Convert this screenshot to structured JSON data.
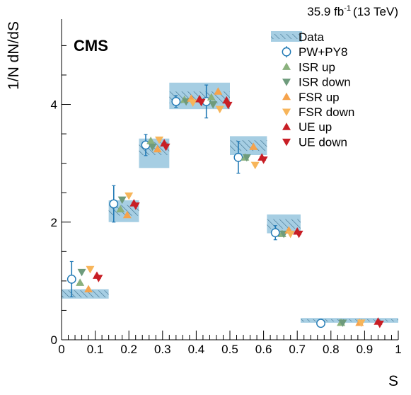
{
  "chart_data": {
    "type": "scatter",
    "experiment_label": "CMS",
    "lumi_label": "35.9 fb",
    "lumi_exponent": "-1",
    "energy_label": "(13 TeV)",
    "xlabel": "S",
    "ylabel": "1/N dN/dS",
    "xlim": [
      0,
      1
    ],
    "ylim": [
      0,
      5.45
    ],
    "x_ticks": [
      "0",
      "0.1",
      "0.2",
      "0.3",
      "0.4",
      "0.5",
      "0.6",
      "0.7",
      "0.8",
      "0.9",
      "1"
    ],
    "y_ticks": [
      "0",
      "2",
      "4"
    ],
    "legend_position": "top-right",
    "data": {
      "name": "Data",
      "bin_edges": [
        [
          0,
          0.14
        ],
        [
          0.14,
          0.23
        ],
        [
          0.23,
          0.32
        ],
        [
          0.32,
          0.5
        ],
        [
          0.5,
          0.61
        ],
        [
          0.61,
          0.71
        ],
        [
          0.71,
          1.0
        ]
      ],
      "values": [
        0.78,
        2.2,
        3.25,
        4.12,
        3.3,
        1.97,
        0.33
      ],
      "unc_low": [
        0.08,
        0.2,
        0.33,
        0.2,
        0.16,
        0.16,
        0.04
      ],
      "unc_high": [
        0.08,
        0.17,
        0.17,
        0.25,
        0.16,
        0.16,
        0.04
      ],
      "hatch_half_height": [
        0.06,
        0.09,
        0.11,
        0.1,
        0.09,
        0.08,
        0.02
      ],
      "color": "#a6cee3"
    },
    "series": [
      {
        "name": "PW+PY8",
        "marker": "circle-open",
        "color": "#1f78b4",
        "x": [
          0.03,
          0.155,
          0.25,
          0.34,
          0.43,
          0.525,
          0.635,
          0.77
        ],
        "y": [
          1.03,
          2.31,
          3.31,
          4.05,
          4.05,
          3.1,
          1.82,
          0.28
        ],
        "err": [
          0.3,
          0.31,
          0.18,
          0.1,
          0.28,
          0.27,
          0.12,
          0.02
        ]
      },
      {
        "name": "ISR up",
        "marker": "triangle-up",
        "color": "#8ab17d",
        "x": [
          0.055,
          0.175,
          0.265,
          0.365,
          0.445,
          0.545,
          0.655,
          0.83
        ],
        "y": [
          0.97,
          2.22,
          3.38,
          4.08,
          4.12,
          3.1,
          1.8,
          0.29
        ]
      },
      {
        "name": "ISR down",
        "marker": "triangle-down",
        "color": "#6e9b7c",
        "x": [
          0.06,
          0.18,
          0.27,
          0.37,
          0.45,
          0.55,
          0.66,
          0.835
        ],
        "y": [
          1.15,
          2.38,
          3.28,
          4.05,
          4.0,
          3.1,
          1.8,
          0.29
        ]
      },
      {
        "name": "FSR up",
        "marker": "triangle-up",
        "color": "#f6a34c",
        "x": [
          0.08,
          0.195,
          0.285,
          0.385,
          0.465,
          0.57,
          0.675,
          0.885
        ],
        "y": [
          0.86,
          2.12,
          3.24,
          4.1,
          4.22,
          3.28,
          1.86,
          0.29
        ]
      },
      {
        "name": "FSR down",
        "marker": "triangle-down",
        "color": "#f7b55a",
        "x": [
          0.085,
          0.2,
          0.29,
          0.39,
          0.47,
          0.575,
          0.68,
          0.89
        ],
        "y": [
          1.2,
          2.45,
          3.4,
          4.03,
          3.92,
          2.97,
          1.8,
          0.29
        ]
      },
      {
        "name": "UE up",
        "marker": "triangle-up",
        "color": "#c81e25",
        "x": [
          0.105,
          0.215,
          0.305,
          0.41,
          0.49,
          0.595,
          0.7,
          0.94
        ],
        "y": [
          1.09,
          2.32,
          3.34,
          4.09,
          4.07,
          3.1,
          1.84,
          0.31
        ]
      },
      {
        "name": "UE down",
        "marker": "triangle-down",
        "color": "#c81e25",
        "x": [
          0.11,
          0.22,
          0.31,
          0.415,
          0.495,
          0.6,
          0.705,
          0.945
        ],
        "y": [
          1.05,
          2.28,
          3.28,
          4.04,
          3.99,
          3.06,
          1.8,
          0.27
        ]
      }
    ]
  }
}
